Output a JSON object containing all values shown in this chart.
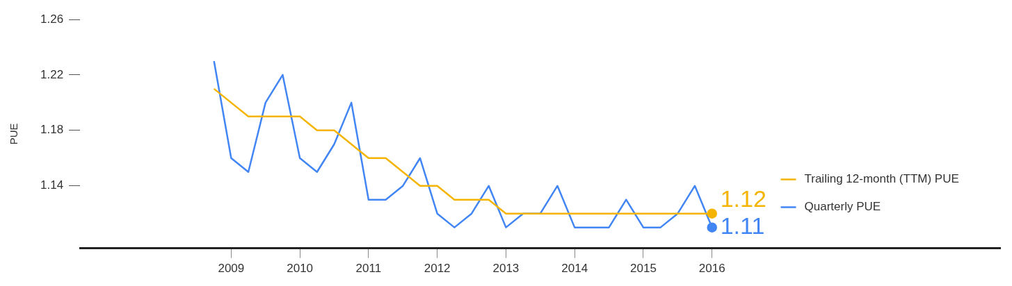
{
  "chart_data": {
    "type": "line",
    "ylabel": "PUE",
    "xlim": [
      2006.8,
      2020.2
    ],
    "xticks": [
      2009,
      2010,
      2011,
      2012,
      2013,
      2014,
      2015,
      2016
    ],
    "ylim": [
      1.095,
      1.26
    ],
    "yticks": [
      1.14,
      1.18,
      1.22,
      1.26
    ],
    "grid": false,
    "legend": "right",
    "marker": "none",
    "line_style": "solid",
    "series": [
      {
        "name": "Trailing 12-month (TTM) PUE",
        "color": "#f4b400",
        "x": [
          2008.75,
          2009,
          2009.25,
          2009.5,
          2009.75,
          2010,
          2010.25,
          2010.5,
          2010.75,
          2011,
          2011.25,
          2011.5,
          2011.75,
          2012,
          2012.25,
          2012.5,
          2012.75,
          2013,
          2013.25,
          2013.5,
          2013.75,
          2014,
          2014.25,
          2014.5,
          2014.75,
          2015,
          2015.25,
          2015.5,
          2015.75,
          2016
        ],
        "values": [
          1.21,
          1.2,
          1.19,
          1.19,
          1.19,
          1.19,
          1.18,
          1.18,
          1.17,
          1.16,
          1.16,
          1.15,
          1.14,
          1.14,
          1.13,
          1.13,
          1.13,
          1.12,
          1.12,
          1.12,
          1.12,
          1.12,
          1.12,
          1.12,
          1.12,
          1.12,
          1.12,
          1.12,
          1.12,
          1.12
        ],
        "value_labels": [
          null,
          null,
          null,
          null,
          null,
          null,
          null,
          null,
          null,
          null,
          null,
          null,
          null,
          null,
          null,
          null,
          null,
          null,
          null,
          null,
          null,
          null,
          null,
          null,
          null,
          null,
          null,
          null,
          null,
          "1.12"
        ]
      },
      {
        "name": "Quarterly PUE",
        "color": "#4285f4",
        "x": [
          2008.75,
          2009,
          2009.25,
          2009.5,
          2009.75,
          2010,
          2010.25,
          2010.5,
          2010.75,
          2011,
          2011.25,
          2011.5,
          2011.75,
          2012,
          2012.25,
          2012.5,
          2012.75,
          2013,
          2013.25,
          2013.5,
          2013.75,
          2014,
          2014.25,
          2014.5,
          2014.75,
          2015,
          2015.25,
          2015.5,
          2015.75,
          2016
        ],
        "values": [
          1.23,
          1.16,
          1.15,
          1.2,
          1.22,
          1.16,
          1.15,
          1.17,
          1.2,
          1.13,
          1.13,
          1.14,
          1.16,
          1.12,
          1.11,
          1.12,
          1.14,
          1.11,
          1.12,
          1.12,
          1.14,
          1.11,
          1.11,
          1.11,
          1.13,
          1.11,
          1.11,
          1.12,
          1.14,
          1.11
        ],
        "value_labels": [
          null,
          null,
          null,
          null,
          null,
          null,
          null,
          null,
          null,
          null,
          null,
          null,
          null,
          null,
          null,
          null,
          null,
          null,
          null,
          null,
          null,
          null,
          null,
          null,
          null,
          null,
          null,
          null,
          null,
          "1.11"
        ]
      }
    ]
  }
}
